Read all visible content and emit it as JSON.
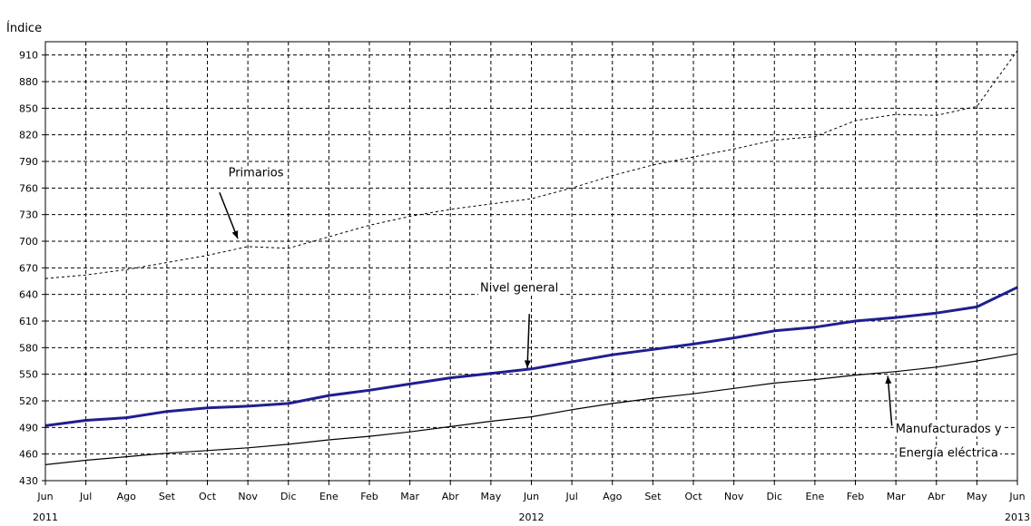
{
  "chart_data": {
    "type": "line",
    "title": "",
    "ylabel": "Índice",
    "xlabel": "",
    "ylim": [
      430,
      925
    ],
    "yticks": [
      430,
      460,
      490,
      520,
      550,
      580,
      610,
      640,
      670,
      700,
      730,
      760,
      790,
      820,
      850,
      880,
      910
    ],
    "grid": true,
    "legend": "none",
    "categories": [
      "Jun",
      "Jul",
      "Ago",
      "Set",
      "Oct",
      "Nov",
      "Dic",
      "Ene",
      "Feb",
      "Mar",
      "Abr",
      "May",
      "Jun",
      "Jul",
      "Ago",
      "Set",
      "Oct",
      "Nov",
      "Dic",
      "Ene",
      "Feb",
      "Mar",
      "Abr",
      "May",
      "Jun"
    ],
    "year_labels": [
      {
        "index": 0,
        "label": "2011"
      },
      {
        "index": 12,
        "label": "2012"
      },
      {
        "index": 24,
        "label": "2013"
      }
    ],
    "series": [
      {
        "name": "Primarios",
        "style": "dashed",
        "color": "#000000",
        "values": [
          658,
          662,
          668,
          676,
          684,
          694,
          692,
          705,
          718,
          728,
          736,
          742,
          748,
          760,
          774,
          786,
          795,
          804,
          814,
          818,
          836,
          843,
          842,
          852,
          915
        ]
      },
      {
        "name": "Nivel general",
        "style": "thick",
        "color": "#1f1f8f",
        "values": [
          492,
          498,
          501,
          508,
          512,
          514,
          517,
          526,
          532,
          539,
          546,
          551,
          556,
          564,
          572,
          578,
          584,
          591,
          599,
          603,
          610,
          614,
          619,
          626,
          648
        ]
      },
      {
        "name": "Manufacturados y Energía eléctrica",
        "style": "thin",
        "color": "#000000",
        "values": [
          448,
          453,
          457,
          461,
          464,
          467,
          471,
          476,
          480,
          485,
          491,
          497,
          502,
          510,
          517,
          523,
          528,
          534,
          540,
          544,
          549,
          553,
          558,
          565,
          573
        ]
      }
    ],
    "annotations": [
      {
        "text": "Primarios",
        "x_index": 5.2,
        "y_value": 773
      },
      {
        "text": "Nivel general",
        "x_index": 11.7,
        "y_value": 643
      },
      {
        "text": "Manufacturados y",
        "x_index": 22.3,
        "y_value": 484
      },
      {
        "text": "Energía eléctrica",
        "x_index": 22.3,
        "y_value": 457
      }
    ]
  }
}
